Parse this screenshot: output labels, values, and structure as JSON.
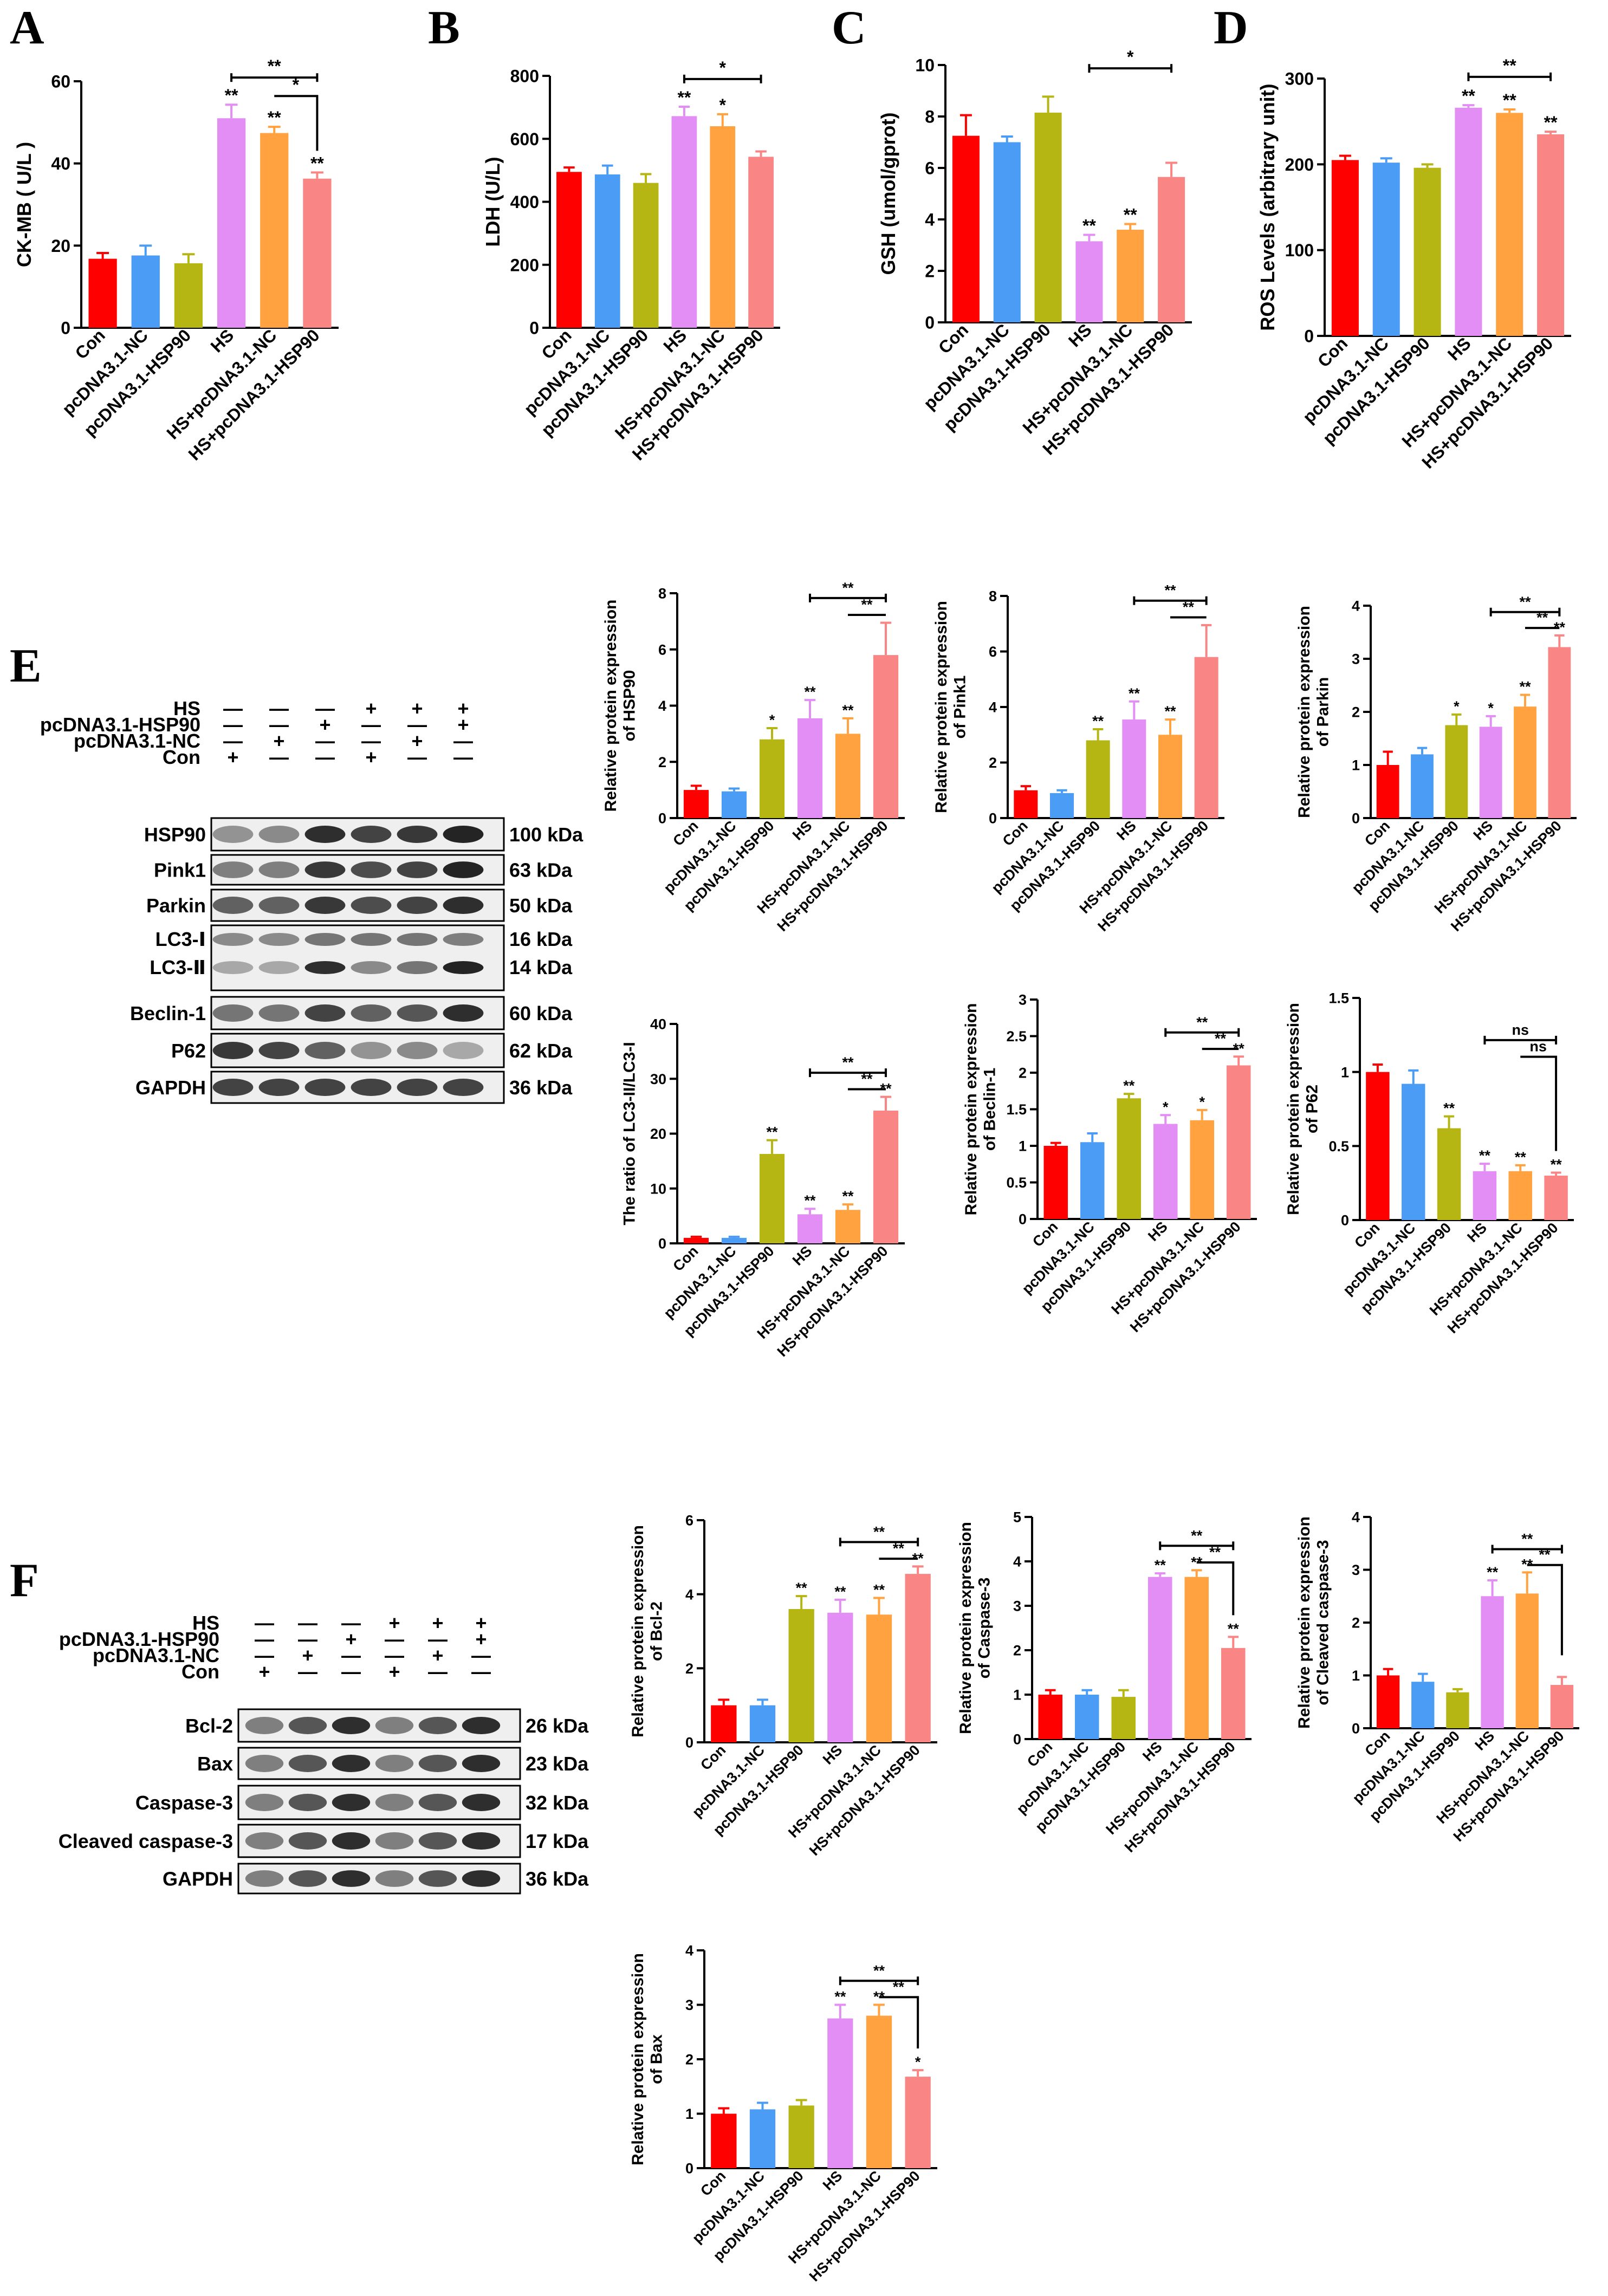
{
  "panels": {
    "A": "A",
    "B": "B",
    "C": "C",
    "D": "D",
    "E": "E",
    "F": "F"
  },
  "groups": [
    "Con",
    "pcDNA3.1-NC",
    "pcDNA3.1-HSP90",
    "HS",
    "HS+pcDNA3.1-NC",
    "HS+pcDNA3.1-HSP90"
  ],
  "colors": [
    "#ff0000",
    "#4a9cf4",
    "#b5b513",
    "#e38ef4",
    "#ffa23f",
    "#f98585"
  ],
  "charts": [
    {
      "id": "A",
      "ylabel": [
        "CK-MB ( U/L )"
      ],
      "ylim": [
        0,
        60
      ],
      "ticks": [
        0,
        20,
        40,
        60
      ],
      "values": [
        16.8,
        17.6,
        15.7,
        51.0,
        47.4,
        36.3
      ],
      "errors": [
        1.4,
        2.4,
        2.2,
        3.3,
        1.5,
        1.5
      ],
      "stars": [
        "",
        "",
        "",
        "**",
        "**",
        "**"
      ],
      "brackets": [
        {
          "from": 3,
          "to": 5,
          "label": "**",
          "kind": "flat"
        },
        {
          "from": 4,
          "to": 5,
          "label": "*",
          "kind": "drop"
        }
      ]
    },
    {
      "id": "B",
      "ylabel": [
        "LDH (U/L)"
      ],
      "ylim": [
        0,
        800
      ],
      "ticks": [
        0,
        200,
        400,
        600,
        800
      ],
      "values": [
        495,
        487,
        460,
        672,
        640,
        543
      ],
      "errors": [
        14,
        28,
        28,
        30,
        38,
        17
      ],
      "stars": [
        "",
        "",
        "",
        "**",
        "*",
        ""
      ],
      "brackets": [
        {
          "from": 3,
          "to": 5,
          "label": "*",
          "kind": "flat"
        }
      ]
    },
    {
      "id": "C",
      "ylabel": [
        "GSH (umol/gprot)"
      ],
      "ylim": [
        0,
        10
      ],
      "ticks": [
        0,
        2,
        4,
        6,
        8,
        10
      ],
      "values": [
        7.25,
        7.0,
        8.15,
        3.15,
        3.6,
        5.65
      ],
      "errors": [
        0.8,
        0.22,
        0.62,
        0.25,
        0.22,
        0.55
      ],
      "stars": [
        "",
        "",
        "",
        "**",
        "**",
        ""
      ],
      "brackets": [
        {
          "from": 3,
          "to": 5,
          "label": "*",
          "kind": "flat"
        }
      ]
    },
    {
      "id": "D",
      "ylabel": [
        "ROS Levels (arbitrary unit)"
      ],
      "ylim": [
        0,
        300
      ],
      "ticks": [
        0,
        100,
        200,
        300
      ],
      "values": [
        205,
        202,
        196,
        266,
        260,
        235
      ],
      "errors": [
        5,
        5,
        4,
        3,
        4,
        3
      ],
      "stars": [
        "",
        "",
        "",
        "**",
        "**",
        "**"
      ],
      "brackets": [
        {
          "from": 3,
          "to": 5,
          "label": "**",
          "kind": "flat"
        }
      ]
    },
    {
      "id": "E1",
      "ylabel": [
        "Relative protein expression",
        "of HSP90"
      ],
      "ylim": [
        0,
        8
      ],
      "ticks": [
        0,
        2,
        4,
        6,
        8
      ],
      "values": [
        1.0,
        0.95,
        2.8,
        3.55,
        3.0,
        5.8
      ],
      "errors": [
        0.15,
        0.1,
        0.4,
        0.65,
        0.55,
        1.15
      ],
      "stars": [
        "",
        "",
        "*",
        "**",
        "**",
        ""
      ],
      "brackets": [
        {
          "from": 3,
          "to": 5,
          "label": "**",
          "kind": "flat"
        },
        {
          "from": 4,
          "to": 5,
          "label": "**",
          "kind": "drop"
        }
      ]
    },
    {
      "id": "E2",
      "ylabel": [
        "Relative protein expression",
        "of Pink1"
      ],
      "ylim": [
        0,
        8
      ],
      "ticks": [
        0,
        2,
        4,
        6,
        8
      ],
      "values": [
        1.0,
        0.9,
        2.8,
        3.55,
        3.0,
        5.8
      ],
      "errors": [
        0.15,
        0.1,
        0.4,
        0.65,
        0.55,
        1.15
      ],
      "stars": [
        "",
        "",
        "**",
        "**",
        "**",
        ""
      ],
      "brackets": [
        {
          "from": 3,
          "to": 5,
          "label": "**",
          "kind": "flat"
        },
        {
          "from": 4,
          "to": 5,
          "label": "**",
          "kind": "drop"
        }
      ]
    },
    {
      "id": "E3",
      "ylabel": [
        "Relative protein expression",
        "of Parkin"
      ],
      "ylim": [
        0,
        4
      ],
      "ticks": [
        0,
        1,
        2,
        3,
        4
      ],
      "values": [
        1.0,
        1.2,
        1.75,
        1.72,
        2.1,
        3.22
      ],
      "errors": [
        0.25,
        0.12,
        0.2,
        0.2,
        0.22,
        0.22
      ],
      "stars": [
        "",
        "",
        "*",
        "*",
        "**",
        "**"
      ],
      "brackets": [
        {
          "from": 3,
          "to": 5,
          "label": "**",
          "kind": "flat"
        },
        {
          "from": 4,
          "to": 5,
          "label": "**",
          "kind": "drop"
        }
      ]
    },
    {
      "id": "E4",
      "ylabel": [
        "The ratio of LC3-II/LC3-I"
      ],
      "ylim": [
        0,
        40
      ],
      "ticks": [
        0,
        10,
        20,
        30,
        40
      ],
      "values": [
        1.0,
        1.0,
        16.3,
        5.3,
        6.1,
        24.2
      ],
      "errors": [
        0.2,
        0.2,
        2.5,
        1.0,
        1.0,
        2.5
      ],
      "stars": [
        "",
        "",
        "**",
        "**",
        "**",
        "**"
      ],
      "brackets": [
        {
          "from": 3,
          "to": 5,
          "label": "**",
          "kind": "flat"
        },
        {
          "from": 4,
          "to": 5,
          "label": "**",
          "kind": "drop"
        }
      ]
    },
    {
      "id": "E5",
      "ylabel": [
        "Relative protein expression",
        "of Beclin-1"
      ],
      "ylim": [
        0,
        3.0
      ],
      "ticks": [
        0,
        0.5,
        1.0,
        1.5,
        2.0,
        2.5,
        3.0
      ],
      "values": [
        1.0,
        1.05,
        1.65,
        1.3,
        1.35,
        2.1
      ],
      "errors": [
        0.04,
        0.12,
        0.06,
        0.12,
        0.14,
        0.12
      ],
      "stars": [
        "",
        "",
        "**",
        "*",
        "*",
        "**"
      ],
      "brackets": [
        {
          "from": 3,
          "to": 5,
          "label": "**",
          "kind": "flat"
        },
        {
          "from": 4,
          "to": 5,
          "label": "**",
          "kind": "drop"
        }
      ]
    },
    {
      "id": "E6",
      "ylabel": [
        "Relative protein expression",
        "of P62"
      ],
      "ylim": [
        0,
        1.5
      ],
      "ticks": [
        0,
        0.5,
        1.0,
        1.5
      ],
      "values": [
        1.0,
        0.92,
        0.62,
        0.33,
        0.33,
        0.3
      ],
      "errors": [
        0.05,
        0.09,
        0.08,
        0.05,
        0.04,
        0.02
      ],
      "stars": [
        "",
        "",
        "**",
        "**",
        "**",
        "**"
      ],
      "brackets": [
        {
          "from": 3,
          "to": 5,
          "label": "ns",
          "kind": "flat"
        },
        {
          "from": 4,
          "to": 5,
          "label": "ns",
          "kind": "drop"
        }
      ]
    },
    {
      "id": "F1",
      "ylabel": [
        "Relative protein expression",
        "of Bcl-2"
      ],
      "ylim": [
        0,
        6
      ],
      "ticks": [
        0,
        2,
        4,
        6
      ],
      "values": [
        1.0,
        1.0,
        3.6,
        3.5,
        3.45,
        4.55
      ],
      "errors": [
        0.15,
        0.15,
        0.35,
        0.35,
        0.45,
        0.2
      ],
      "stars": [
        "",
        "",
        "**",
        "**",
        "**",
        "**"
      ],
      "brackets": [
        {
          "from": 3,
          "to": 5,
          "label": "**",
          "kind": "flat"
        },
        {
          "from": 4,
          "to": 5,
          "label": "**",
          "kind": "drop"
        }
      ]
    },
    {
      "id": "F2",
      "ylabel": [
        "Relative protein expression",
        "of Caspase-3"
      ],
      "ylim": [
        0,
        5
      ],
      "ticks": [
        0,
        1,
        2,
        3,
        4,
        5
      ],
      "values": [
        1.0,
        1.0,
        0.95,
        3.65,
        3.65,
        2.05
      ],
      "errors": [
        0.1,
        0.1,
        0.15,
        0.08,
        0.15,
        0.25
      ],
      "stars": [
        "",
        "",
        "",
        "**",
        "**",
        "**"
      ],
      "brackets": [
        {
          "from": 3,
          "to": 5,
          "label": "**",
          "kind": "flat"
        },
        {
          "from": 4,
          "to": 5,
          "label": "**",
          "kind": "drop"
        }
      ]
    },
    {
      "id": "F3",
      "ylabel": [
        "Relative protein expression",
        "of Cleaved caspase-3"
      ],
      "ylim": [
        0,
        4
      ],
      "ticks": [
        0,
        1,
        2,
        3,
        4
      ],
      "values": [
        1.0,
        0.88,
        0.68,
        2.5,
        2.55,
        0.82
      ],
      "errors": [
        0.12,
        0.15,
        0.06,
        0.3,
        0.4,
        0.15
      ],
      "stars": [
        "",
        "",
        "",
        "**",
        "**",
        ""
      ],
      "brackets": [
        {
          "from": 3,
          "to": 5,
          "label": "**",
          "kind": "flat"
        },
        {
          "from": 4,
          "to": 5,
          "label": "**",
          "kind": "drop"
        }
      ]
    },
    {
      "id": "F4",
      "ylabel": [
        "Relative protein expression",
        "of Bax"
      ],
      "ylim": [
        0,
        4
      ],
      "ticks": [
        0,
        1,
        2,
        3,
        4
      ],
      "values": [
        1.0,
        1.08,
        1.15,
        2.75,
        2.8,
        1.68
      ],
      "errors": [
        0.1,
        0.12,
        0.1,
        0.25,
        0.2,
        0.12
      ],
      "stars": [
        "",
        "",
        "",
        "**",
        "**",
        "*"
      ],
      "brackets": [
        {
          "from": 3,
          "to": 5,
          "label": "**",
          "kind": "flat"
        },
        {
          "from": 4,
          "to": 5,
          "label": "**",
          "kind": "drop"
        }
      ]
    }
  ],
  "blots": [
    {
      "id": "E",
      "treatments": [
        {
          "label": "HS",
          "marks": [
            "—",
            "—",
            "—",
            "+",
            "+",
            "+"
          ]
        },
        {
          "label": "pcDNA3.1-HSP90",
          "marks": [
            "—",
            "—",
            "+",
            "—",
            "—",
            "+"
          ]
        },
        {
          "label": "pcDNA3.1-NC",
          "marks": [
            "—",
            "+",
            "—",
            "—",
            "+",
            "—"
          ]
        },
        {
          "label": "Con",
          "marks": [
            "+",
            "—",
            "—",
            "+",
            "—",
            "—"
          ]
        }
      ],
      "bands": [
        {
          "name": "HSP90",
          "kda": "100 kDa"
        },
        {
          "name": "Pink1",
          "kda": "63 kDa"
        },
        {
          "name": "Parkin",
          "kda": "50 kDa"
        },
        {
          "name": "LC3-Ⅰ",
          "kda": "16 kDa"
        },
        {
          "name": "LC3-Ⅱ",
          "kda": "14 kDa"
        },
        {
          "name": "Beclin-1",
          "kda": "60 kDa"
        },
        {
          "name": "P62",
          "kda": "62 kDa"
        },
        {
          "name": "GAPDH",
          "kda": "36 kDa"
        }
      ]
    },
    {
      "id": "F",
      "treatments": [
        {
          "label": "HS",
          "marks": [
            "—",
            "—",
            "—",
            "+",
            "+",
            "+"
          ]
        },
        {
          "label": "pcDNA3.1-HSP90",
          "marks": [
            "—",
            "—",
            "+",
            "—",
            "—",
            "+"
          ]
        },
        {
          "label": "pcDNA3.1-NC",
          "marks": [
            "—",
            "+",
            "—",
            "—",
            "+",
            "—"
          ]
        },
        {
          "label": "Con",
          "marks": [
            "+",
            "—",
            "—",
            "+",
            "—",
            "—"
          ]
        }
      ],
      "bands": [
        {
          "name": "Bcl-2",
          "kda": "26 kDa"
        },
        {
          "name": "Bax",
          "kda": "23 kDa"
        },
        {
          "name": "Caspase-3",
          "kda": "32 kDa"
        },
        {
          "name": "Cleaved caspase-3",
          "kda": "17 kDa"
        },
        {
          "name": "GAPDH",
          "kda": "36 kDa"
        }
      ]
    }
  ],
  "chart_data": [
    {
      "type": "bar",
      "title": "A",
      "ylabel": "CK-MB ( U/L )",
      "categories": [
        "Con",
        "pcDNA3.1-NC",
        "pcDNA3.1-HSP90",
        "HS",
        "HS+pcDNA3.1-NC",
        "HS+pcDNA3.1-HSP90"
      ],
      "values": [
        16.8,
        17.6,
        15.7,
        51.0,
        47.4,
        36.3
      ],
      "ylim": [
        0,
        60
      ]
    },
    {
      "type": "bar",
      "title": "B",
      "ylabel": "LDH (U/L)",
      "categories": [
        "Con",
        "pcDNA3.1-NC",
        "pcDNA3.1-HSP90",
        "HS",
        "HS+pcDNA3.1-NC",
        "HS+pcDNA3.1-HSP90"
      ],
      "values": [
        495,
        487,
        460,
        672,
        640,
        543
      ],
      "ylim": [
        0,
        800
      ]
    },
    {
      "type": "bar",
      "title": "C",
      "ylabel": "GSH (umol/gprot)",
      "categories": [
        "Con",
        "pcDNA3.1-NC",
        "pcDNA3.1-HSP90",
        "HS",
        "HS+pcDNA3.1-NC",
        "HS+pcDNA3.1-HSP90"
      ],
      "values": [
        7.25,
        7.0,
        8.15,
        3.15,
        3.6,
        5.65
      ],
      "ylim": [
        0,
        10
      ]
    },
    {
      "type": "bar",
      "title": "D",
      "ylabel": "ROS Levels (arbitrary unit)",
      "categories": [
        "Con",
        "pcDNA3.1-NC",
        "pcDNA3.1-HSP90",
        "HS",
        "HS+pcDNA3.1-NC",
        "HS+pcDNA3.1-HSP90"
      ],
      "values": [
        205,
        202,
        196,
        266,
        260,
        235
      ],
      "ylim": [
        0,
        300
      ]
    },
    {
      "type": "bar",
      "title": "HSP90",
      "ylabel": "Relative protein expression of HSP90",
      "values": [
        1.0,
        0.95,
        2.8,
        3.55,
        3.0,
        5.8
      ],
      "ylim": [
        0,
        8
      ]
    },
    {
      "type": "bar",
      "title": "Pink1",
      "ylabel": "Relative protein expression of Pink1",
      "values": [
        1.0,
        0.9,
        2.8,
        3.55,
        3.0,
        5.8
      ],
      "ylim": [
        0,
        8
      ]
    },
    {
      "type": "bar",
      "title": "Parkin",
      "ylabel": "Relative protein expression of Parkin",
      "values": [
        1.0,
        1.2,
        1.75,
        1.72,
        2.1,
        3.22
      ],
      "ylim": [
        0,
        4
      ]
    },
    {
      "type": "bar",
      "title": "LC3",
      "ylabel": "The ratio of LC3-II/LC3-I",
      "values": [
        1.0,
        1.0,
        16.3,
        5.3,
        6.1,
        24.2
      ],
      "ylim": [
        0,
        40
      ]
    },
    {
      "type": "bar",
      "title": "Beclin-1",
      "ylabel": "Relative protein expression of Beclin-1",
      "values": [
        1.0,
        1.05,
        1.65,
        1.3,
        1.35,
        2.1
      ],
      "ylim": [
        0,
        3.0
      ]
    },
    {
      "type": "bar",
      "title": "P62",
      "ylabel": "Relative protein expression of P62",
      "values": [
        1.0,
        0.92,
        0.62,
        0.33,
        0.33,
        0.3
      ],
      "ylim": [
        0,
        1.5
      ]
    },
    {
      "type": "bar",
      "title": "Bcl-2",
      "ylabel": "Relative protein expression of Bcl-2",
      "values": [
        1.0,
        1.0,
        3.6,
        3.5,
        3.45,
        4.55
      ],
      "ylim": [
        0,
        6
      ]
    },
    {
      "type": "bar",
      "title": "Caspase-3",
      "ylabel": "Relative protein expression of Caspase-3",
      "values": [
        1.0,
        1.0,
        0.95,
        3.65,
        3.65,
        2.05
      ],
      "ylim": [
        0,
        5
      ]
    },
    {
      "type": "bar",
      "title": "Cleaved caspase-3",
      "ylabel": "Relative protein expression of Cleaved caspase-3",
      "values": [
        1.0,
        0.88,
        0.68,
        2.5,
        2.55,
        0.82
      ],
      "ylim": [
        0,
        4
      ]
    },
    {
      "type": "bar",
      "title": "Bax",
      "ylabel": "Relative protein expression of Bax",
      "values": [
        1.0,
        1.08,
        1.15,
        2.75,
        2.8,
        1.68
      ],
      "ylim": [
        0,
        4
      ]
    }
  ]
}
